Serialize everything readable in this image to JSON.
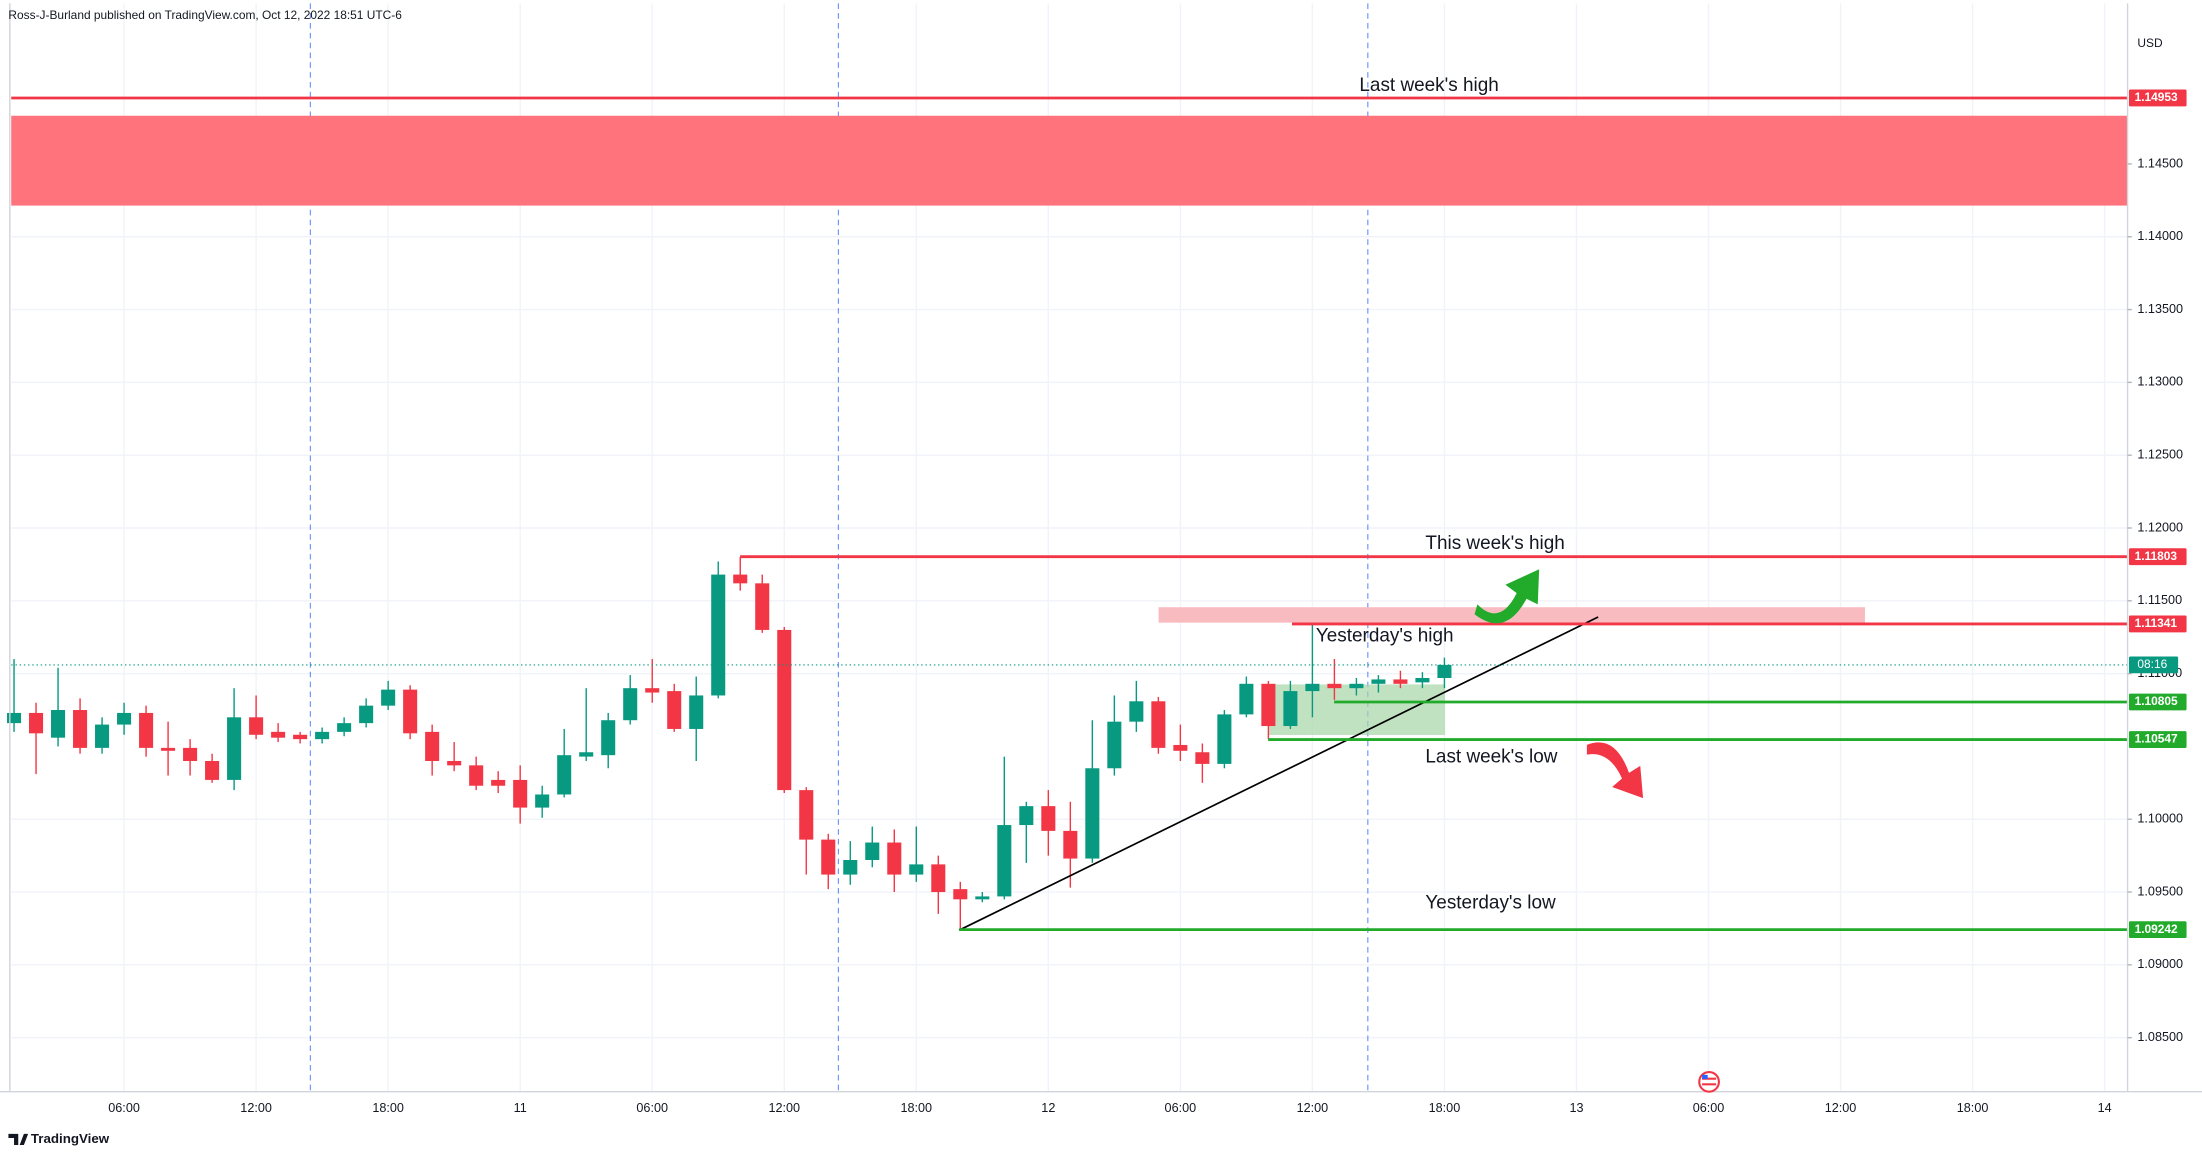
{
  "header": "Ross-J-Burland published on TradingView.com, Oct 12, 2022 18:51 UTC-6",
  "currency": "USD",
  "brand": "TradingView",
  "countdown": "08:16",
  "chart_data": {
    "type": "candlestick",
    "categories": [
      null,
      null,
      null,
      null,
      null,
      "06:00",
      null,
      null,
      null,
      null,
      null,
      "12:00",
      null,
      null,
      null,
      null,
      null,
      "18:00",
      null,
      null,
      null,
      null,
      null,
      "11",
      null,
      null,
      null,
      null,
      null,
      "06:00",
      null,
      null,
      null,
      null,
      null,
      "12:00",
      null,
      null,
      null,
      null,
      null,
      "18:00",
      null,
      null,
      null,
      null,
      null,
      "12",
      null,
      null,
      null,
      null,
      null,
      "06:00",
      null,
      null,
      null,
      null,
      null,
      "12:00",
      null,
      null,
      null,
      null,
      null,
      "18:00",
      null,
      null,
      null,
      null,
      null,
      "13",
      null,
      null,
      null,
      null,
      null,
      "06:00",
      null,
      null,
      null,
      null,
      null,
      "12:00",
      null,
      null,
      null,
      null,
      null,
      "18:00",
      null,
      null,
      null,
      null,
      null,
      "14"
    ],
    "open": [
      1.1066,
      1.1073,
      1.1056,
      1.1075,
      1.1049,
      1.1065,
      1.1073,
      1.1049,
      1.1049,
      1.104,
      1.1027,
      1.107,
      1.106,
      1.1058,
      1.1055,
      1.106,
      1.1066,
      1.1078,
      1.1089,
      1.106,
      1.104,
      1.1037,
      1.1027,
      1.1027,
      1.1008,
      1.1017,
      1.1043,
      1.1044,
      1.1068,
      1.109,
      1.1088,
      1.1062,
      1.1085,
      1.1168,
      1.1162,
      1.113,
      1.102,
      1.0986,
      1.0962,
      1.0972,
      1.0984,
      1.0962,
      1.0969,
      1.0952,
      1.0945,
      1.0947,
      1.0996,
      1.1009,
      1.0992,
      1.0973,
      1.1035,
      1.1067,
      1.1081,
      1.1051,
      1.1046,
      1.1038,
      1.1072,
      1.1093,
      1.1064,
      1.1088,
      1.1093,
      1.109,
      1.1093,
      1.1096,
      1.1094,
      1.1097,
      null,
      null,
      null,
      null,
      null,
      null,
      null,
      null,
      null,
      null,
      null,
      null,
      null,
      null,
      null,
      null,
      null,
      null,
      null,
      null,
      null,
      null,
      null,
      null,
      null,
      null,
      null,
      null,
      null,
      null
    ],
    "high": [
      1.111,
      1.108,
      1.1104,
      1.1083,
      1.107,
      1.108,
      1.1078,
      1.1067,
      1.1055,
      1.1045,
      1.109,
      1.1085,
      1.1066,
      1.106,
      1.1063,
      1.107,
      1.1083,
      1.1095,
      1.1092,
      1.1065,
      1.1053,
      1.1043,
      1.1033,
      1.1037,
      1.1023,
      1.1062,
      1.109,
      1.1073,
      1.1099,
      1.111,
      1.1093,
      1.1098,
      1.1177,
      1.118,
      1.1168,
      1.1132,
      1.1022,
      1.099,
      1.0985,
      1.0995,
      1.0993,
      1.0995,
      1.0975,
      1.0957,
      1.095,
      1.1043,
      1.1012,
      1.102,
      1.1012,
      1.1068,
      1.1085,
      1.1095,
      1.1084,
      1.1065,
      1.1052,
      1.1075,
      1.1098,
      1.1095,
      1.1095,
      1.1134,
      1.111,
      1.1097,
      1.1099,
      1.1102,
      1.1101,
      1.1111,
      null,
      null,
      null,
      null,
      null,
      null,
      null,
      null,
      null,
      null,
      null,
      null,
      null,
      null,
      null,
      null,
      null,
      null,
      null,
      null,
      null,
      null,
      null,
      null,
      null,
      null,
      null,
      null,
      null,
      null
    ],
    "low": [
      1.106,
      1.1031,
      1.105,
      1.1045,
      1.1045,
      1.1058,
      1.1043,
      1.103,
      1.103,
      1.1025,
      1.102,
      1.1055,
      1.1053,
      1.1052,
      1.1052,
      1.1057,
      1.1063,
      1.1075,
      1.1055,
      1.103,
      1.1033,
      1.102,
      1.1018,
      1.0997,
      1.1001,
      1.1015,
      1.104,
      1.1035,
      1.1065,
      1.108,
      1.106,
      1.104,
      1.1083,
      1.1157,
      1.1128,
      1.1018,
      1.0962,
      1.0952,
      1.0955,
      1.0967,
      1.095,
      1.0957,
      1.0935,
      1.0924,
      1.0943,
      1.0945,
      1.097,
      1.0975,
      1.0953,
      1.097,
      1.103,
      1.106,
      1.1045,
      1.104,
      1.1025,
      1.1035,
      1.107,
      1.1055,
      1.1062,
      1.107,
      1.1082,
      1.1085,
      1.1087,
      1.109,
      1.109,
      1.109,
      null,
      null,
      null,
      null,
      null,
      null,
      null,
      null,
      null,
      null,
      null,
      null,
      null,
      null,
      null,
      null,
      null,
      null,
      null,
      null,
      null,
      null,
      null,
      null,
      null,
      null,
      null,
      null,
      null,
      null
    ],
    "close": [
      1.1073,
      1.1059,
      1.1075,
      1.1049,
      1.1065,
      1.1073,
      1.1049,
      1.1047,
      1.104,
      1.1027,
      1.107,
      1.1058,
      1.1056,
      1.1055,
      1.106,
      1.1066,
      1.1078,
      1.1089,
      1.1059,
      1.104,
      1.1037,
      1.1023,
      1.1023,
      1.1008,
      1.1017,
      1.1044,
      1.1046,
      1.1068,
      1.109,
      1.1087,
      1.1062,
      1.1085,
      1.1168,
      1.1162,
      1.113,
      1.102,
      1.0986,
      1.0962,
      1.0972,
      1.0984,
      1.0962,
      1.0969,
      1.095,
      1.0945,
      1.0947,
      1.0996,
      1.1009,
      1.0992,
      1.0973,
      1.1035,
      1.1067,
      1.1081,
      1.1049,
      1.1047,
      1.1038,
      1.1072,
      1.1093,
      1.1064,
      1.1088,
      1.1093,
      1.109,
      1.1093,
      1.1096,
      1.1093,
      1.1097,
      1.1106,
      null,
      null,
      null,
      null,
      null,
      null,
      null,
      null,
      null,
      null,
      null,
      null,
      null,
      null,
      null,
      null,
      null,
      null,
      null,
      null,
      null,
      null,
      null,
      null,
      null,
      null,
      null,
      null,
      null,
      null
    ],
    "up_color": "#089981",
    "down_color": "#f23645",
    "ylim": [
      1.08129,
      1.15603
    ],
    "yticks": [
      {
        "value": 1.085,
        "label": "1.08500"
      },
      {
        "value": 1.09,
        "label": "1.09000"
      },
      {
        "value": 1.095,
        "label": "1.09500"
      },
      {
        "value": 1.1,
        "label": "1.10000"
      },
      {
        "value": 1.11,
        "label": "1.11000"
      },
      {
        "value": 1.115,
        "label": "1.11500"
      },
      {
        "value": 1.12,
        "label": "1.12000"
      },
      {
        "value": 1.125,
        "label": "1.12500"
      },
      {
        "value": 1.13,
        "label": "1.13000"
      },
      {
        "value": 1.135,
        "label": "1.13500"
      },
      {
        "value": 1.14,
        "label": "1.14000"
      },
      {
        "value": 1.145,
        "label": "1.14500"
      }
    ],
    "grid": true,
    "levels": [
      {
        "label": "Last week's high",
        "value": 1.14953,
        "color": "#f23645"
      },
      {
        "label": "This week's high",
        "value": 1.11803,
        "color": "#f23645"
      },
      {
        "label": "Yesterday's high",
        "value": 1.11341,
        "color": "#f23645"
      },
      {
        "value": 1.10805,
        "color": "#22ab2b"
      },
      {
        "label": "Last week's low",
        "value": 1.10547,
        "color": "#22ab2b"
      },
      {
        "label": "Yesterday's low",
        "value": 1.09242,
        "color": "#22ab2b"
      }
    ],
    "zones": [
      {
        "from": 1.14214,
        "to": 1.14831,
        "color": "#ff737d"
      },
      {
        "from": 1.1135,
        "to": 1.11456,
        "color": "#f8bbc0"
      }
    ]
  }
}
